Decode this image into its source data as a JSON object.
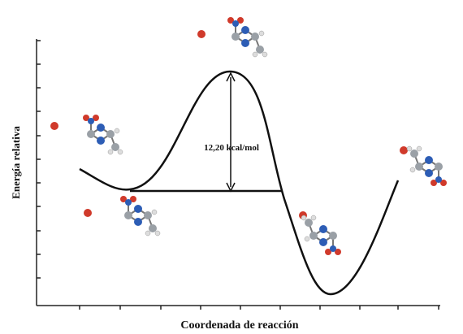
{
  "axes": {
    "y_label": "Energía relativa",
    "x_label": "Coordenada de reacción"
  },
  "annotation": "12,20 kcal/mol"
}
